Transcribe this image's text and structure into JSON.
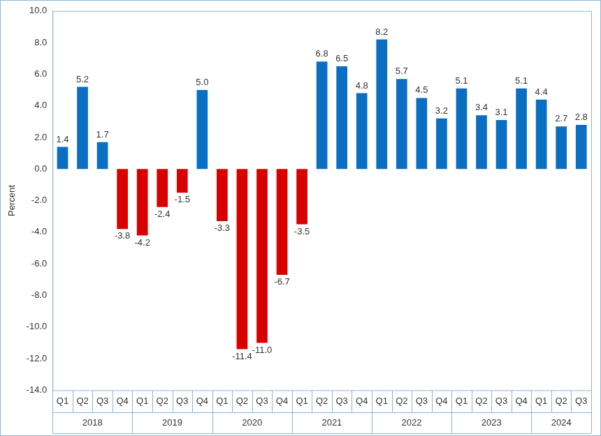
{
  "chart_data": {
    "type": "bar",
    "y_label": "Percent",
    "categories": [
      "Q1",
      "Q2",
      "Q3",
      "Q4",
      "Q1",
      "Q2",
      "Q3",
      "Q4",
      "Q1",
      "Q2",
      "Q3",
      "Q4",
      "Q1",
      "Q2",
      "Q3",
      "Q4",
      "Q1",
      "Q2",
      "Q3",
      "Q4",
      "Q1",
      "Q2",
      "Q3",
      "Q4",
      "Q1",
      "Q2",
      "Q3"
    ],
    "years": [
      "2018",
      "2018",
      "2018",
      "2018",
      "2019",
      "2019",
      "2019",
      "2019",
      "2020",
      "2020",
      "2020",
      "2020",
      "2021",
      "2021",
      "2021",
      "2021",
      "2022",
      "2022",
      "2022",
      "2022",
      "2023",
      "2023",
      "2023",
      "2023",
      "2024",
      "2024",
      "2024"
    ],
    "values": [
      1.4,
      5.2,
      1.7,
      -3.8,
      -4.2,
      -2.4,
      -1.5,
      5.0,
      -3.3,
      -11.4,
      -11.0,
      -6.7,
      -3.5,
      6.8,
      6.5,
      4.8,
      8.2,
      5.7,
      4.5,
      3.2,
      5.1,
      3.4,
      3.1,
      5.1,
      4.4,
      2.7,
      2.8
    ],
    "value_labels": [
      "1.4",
      "5.2",
      "1.7",
      "-3.8",
      "-4.2",
      "-2.4",
      "-1.5",
      "5.0",
      "-3.3",
      "-11.4",
      "-11.0",
      "-6.7",
      "-3.5",
      "6.8",
      "6.5",
      "4.8",
      "8.2",
      "5.7",
      "4.5",
      "3.2",
      "5.1",
      "3.4",
      "3.1",
      "5.1",
      "4.4",
      "2.7",
      "2.8"
    ],
    "colors": [
      "#0a6fc2",
      "#0a6fc2",
      "#0a6fc2",
      "#d90000",
      "#d90000",
      "#d90000",
      "#d90000",
      "#0a6fc2",
      "#d90000",
      "#d90000",
      "#d90000",
      "#d90000",
      "#d90000",
      "#0a6fc2",
      "#0a6fc2",
      "#0a6fc2",
      "#0a6fc2",
      "#0a6fc2",
      "#0a6fc2",
      "#0a6fc2",
      "#0a6fc2",
      "#0a6fc2",
      "#0a6fc2",
      "#0a6fc2",
      "#0a6fc2",
      "#0a6fc2",
      "#0a6fc2"
    ],
    "ylim": [
      -14,
      10
    ],
    "yticks": [
      {
        "value": -14,
        "label": "-14.0"
      },
      {
        "value": -12,
        "label": "-12.0"
      },
      {
        "value": -10,
        "label": "-10.0"
      },
      {
        "value": -8,
        "label": "-8.0"
      },
      {
        "value": -6,
        "label": "-6.0"
      },
      {
        "value": -4,
        "label": "-4.0"
      },
      {
        "value": -2,
        "label": "-2.0"
      },
      {
        "value": 0,
        "label": "0.0"
      },
      {
        "value": 2,
        "label": "2.0"
      },
      {
        "value": 4,
        "label": "4.0"
      },
      {
        "value": 6,
        "label": "6.0"
      },
      {
        "value": 8,
        "label": "8.0"
      },
      {
        "value": 10,
        "label": "10.0"
      }
    ],
    "grid": false,
    "data_labels": true
  }
}
